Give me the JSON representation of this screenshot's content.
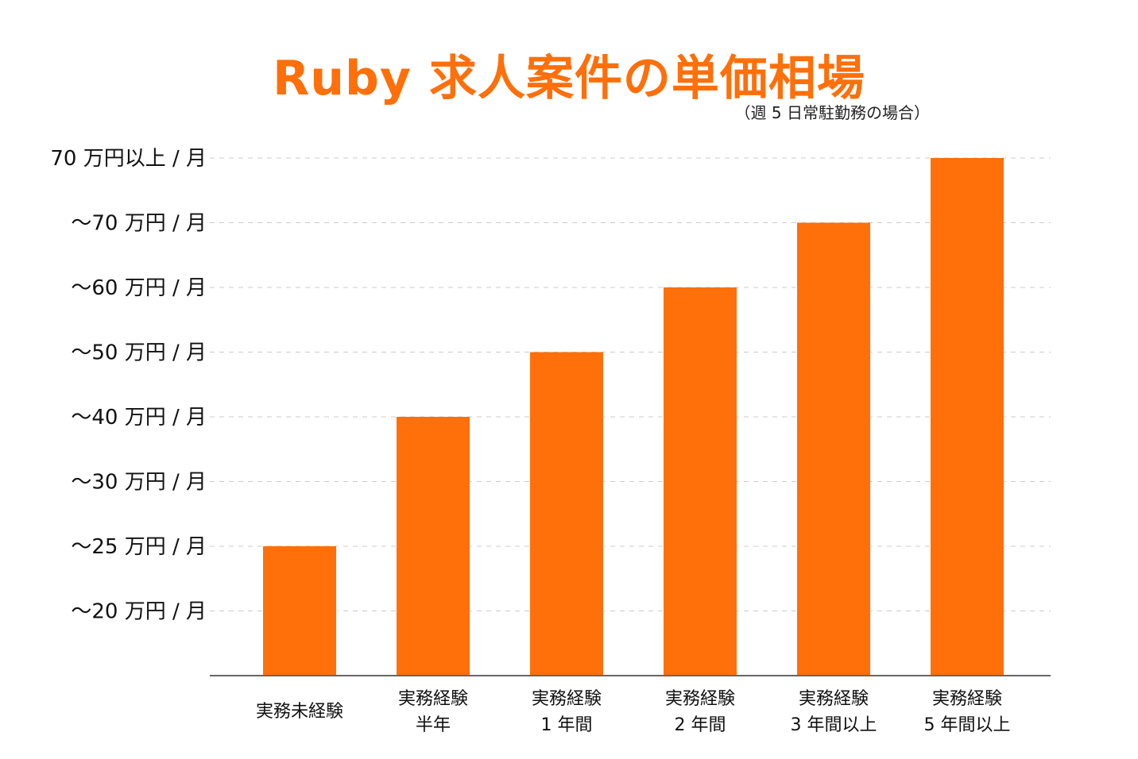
{
  "title": "Ruby 求人案件の単価相場",
  "subtitle": "（週 5 日常駐勤務の場合）",
  "colors": {
    "accent": "#ff6f0a",
    "bar": "#ff6f0a",
    "grid": "#cccccc",
    "axis": "#666666"
  },
  "chart_data": {
    "type": "bar",
    "title": "Ruby 求人案件の単価相場",
    "subtitle": "（週 5 日常駐勤務の場合）",
    "xlabel": "",
    "ylabel": "",
    "y_tick_labels": [
      "〜20 万円 / 月",
      "〜25 万円 / 月",
      "〜30 万円 / 月",
      "〜40 万円 / 月",
      "〜50 万円 / 月",
      "〜60 万円 / 月",
      "〜70 万円 / 月",
      "70 万円以上 / 月"
    ],
    "categories": [
      [
        "実務未経験"
      ],
      [
        "実務経験",
        "半年"
      ],
      [
        "実務経験",
        "1 年間"
      ],
      [
        "実務経験",
        "2 年間"
      ],
      [
        "実務経験",
        "3 年間以上"
      ],
      [
        "実務経験",
        "5 年間以上"
      ]
    ],
    "values": [
      2,
      4,
      5,
      6,
      7,
      8
    ],
    "value_meaning": "index on the y tick scale, 1 = 〜20 万円 / 月 … 8 = 70 万円以上 / 月",
    "ylim": [
      0,
      8
    ],
    "grid": "dashed horizontal",
    "legend": "none"
  }
}
